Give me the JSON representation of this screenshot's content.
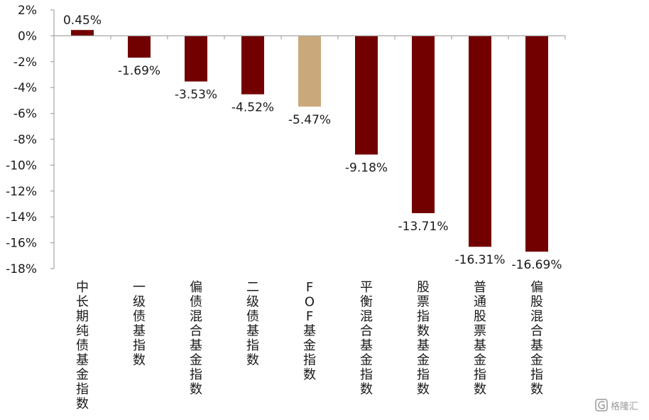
{
  "chart_data": {
    "type": "bar",
    "categories": [
      "中长期纯债基金指数",
      "一级债基指数",
      "偏债混合基金指数",
      "二级债基指数",
      "FOF基金指数",
      "平衡混合基金指数",
      "股票指数基金指数",
      "普通股票基金指数",
      "偏股混合基金指数"
    ],
    "values": [
      0.45,
      -1.69,
      -3.53,
      -4.52,
      -5.47,
      -9.18,
      -13.71,
      -16.31,
      -16.69
    ],
    "value_labels": [
      "0.45%",
      "-1.69%",
      "-3.53%",
      "-4.52%",
      "-5.47%",
      "-9.18%",
      "-13.71%",
      "-16.31%",
      "-16.69%"
    ],
    "ylim": [
      -18,
      2
    ],
    "yticks": [
      2,
      0,
      -2,
      -4,
      -6,
      -8,
      -10,
      -12,
      -14,
      -16,
      -18
    ],
    "ytick_labels": [
      "2%",
      "0%",
      "-2%",
      "-4%",
      "-6%",
      "-8%",
      "-10%",
      "-12%",
      "-14%",
      "-16%",
      "-18%"
    ],
    "bar_colors": [
      "#720000",
      "#720000",
      "#720000",
      "#720000",
      "#c9a97c",
      "#720000",
      "#720000",
      "#720000",
      "#720000"
    ],
    "title": "",
    "xlabel": "",
    "ylabel": "",
    "grid": false,
    "legend": "none"
  },
  "watermark": {
    "text": "格隆汇",
    "icon": "logo-g-icon"
  }
}
